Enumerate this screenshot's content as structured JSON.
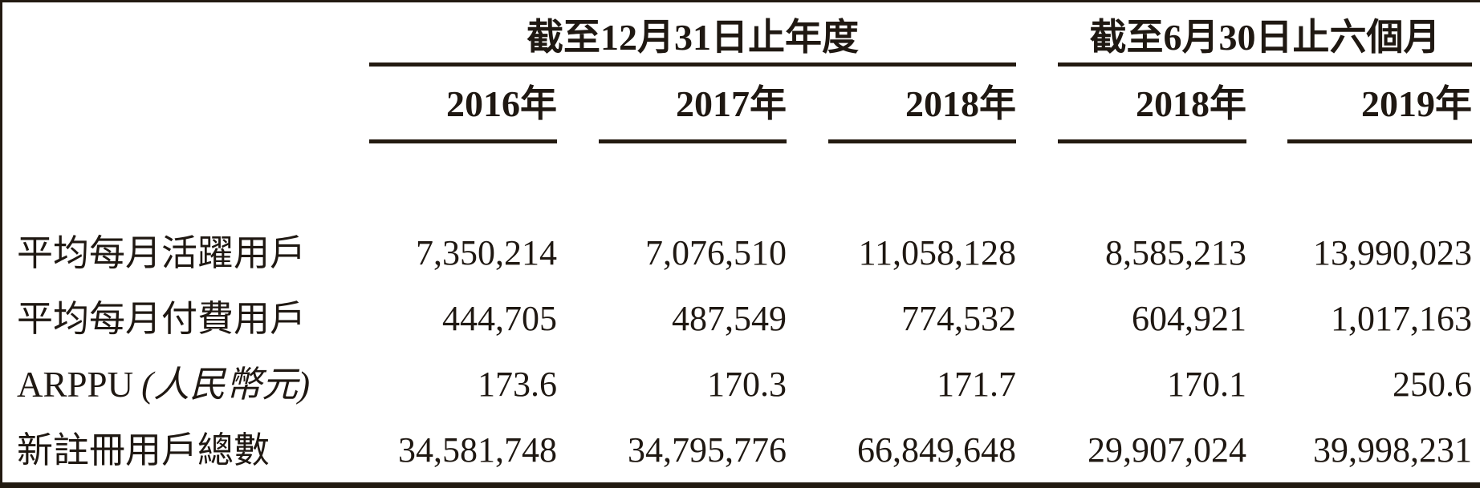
{
  "table": {
    "col_groups": [
      {
        "label": "截至12月31日止年度",
        "columns_spanned": 3
      },
      {
        "label": "截至6月30日止六個月",
        "columns_spanned": 2
      }
    ],
    "year_headers": [
      "2016年",
      "2017年",
      "2018年",
      "2018年",
      "2019年"
    ],
    "rows": [
      {
        "label": "平均每月活躍用戶",
        "note": "",
        "values": [
          "7,350,214",
          "7,076,510",
          "11,058,128",
          "8,585,213",
          "13,990,023"
        ]
      },
      {
        "label": "平均每月付費用戶",
        "note": "",
        "values": [
          "444,705",
          "487,549",
          "774,532",
          "604,921",
          "1,017,163"
        ]
      },
      {
        "label": "ARPPU",
        "note": "(人民幣元)",
        "values": [
          "173.6",
          "170.3",
          "171.7",
          "170.1",
          "250.6"
        ]
      },
      {
        "label": "新註冊用戶總數",
        "note": "",
        "values": [
          "34,581,748",
          "34,795,776",
          "66,849,648",
          "29,907,024",
          "39,998,231"
        ]
      }
    ],
    "colors": {
      "text": "#1f1812",
      "rule": "#231a10",
      "background": "#ffffff"
    }
  }
}
